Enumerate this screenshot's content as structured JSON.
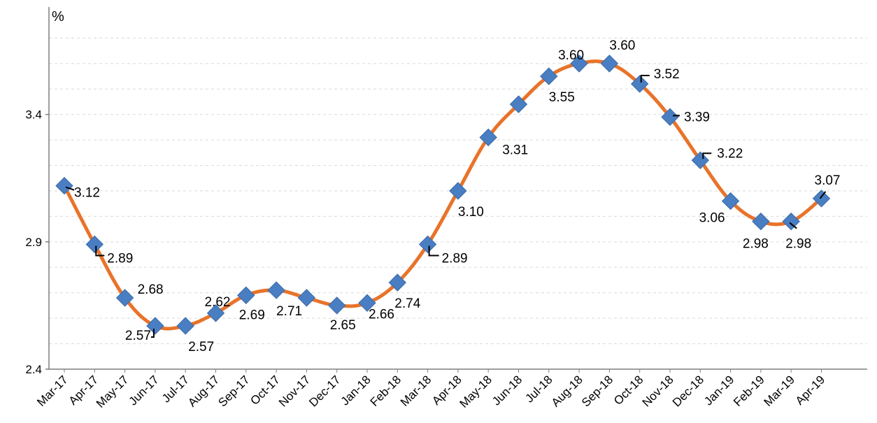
{
  "chart_data": {
    "type": "line",
    "title": "",
    "xlabel": "",
    "ylabel": "%",
    "ylim": [
      2.4,
      3.8
    ],
    "yticks": [
      2.4,
      2.9,
      3.4
    ],
    "grid": true,
    "categories": [
      "Mar-17",
      "Apr-17",
      "May-17",
      "Jun-17",
      "Jul-17",
      "Aug-17",
      "Sep-17",
      "Oct-17",
      "Nov-17",
      "Dec-17",
      "Jan-18",
      "Feb-18",
      "Mar-18",
      "Apr-18",
      "May-18",
      "Jun-18",
      "Jul-18",
      "Aug-18",
      "Sep-18",
      "Oct-18",
      "Nov-18",
      "Dec-18",
      "Jan-19",
      "Feb-19",
      "Mar-19",
      "Apr-19"
    ],
    "series": [
      {
        "values": [
          3.12,
          2.89,
          2.68,
          2.57,
          2.57,
          2.62,
          2.69,
          2.71,
          2.68,
          2.65,
          2.66,
          2.74,
          2.89,
          3.1,
          3.31,
          3.44,
          3.55,
          3.6,
          3.6,
          3.52,
          3.39,
          3.22,
          3.06,
          2.98,
          2.98,
          3.07
        ],
        "data_labels": {
          "0": "3.12",
          "1": "2.89",
          "2": "2.68",
          "3": "2.57",
          "4": "2.57",
          "5": "2.62",
          "6": "2.69",
          "7": "2.71",
          "9": "2.65",
          "10": "2.66",
          "11": "2.74",
          "12": "2.89",
          "13": "3.10",
          "14": "3.31",
          "16": "3.55",
          "17": "3.60",
          "18": "3.60",
          "19": "3.52",
          "20": "3.39",
          "21": "3.22",
          "22": "3.06",
          "23": "2.98",
          "24": "2.98",
          "25": "3.07"
        }
      }
    ],
    "colors": {
      "line": "#E8732A",
      "marker": "#4A7EC2",
      "axis": "#7F7F7F",
      "grid": "#D9D9D9"
    }
  }
}
